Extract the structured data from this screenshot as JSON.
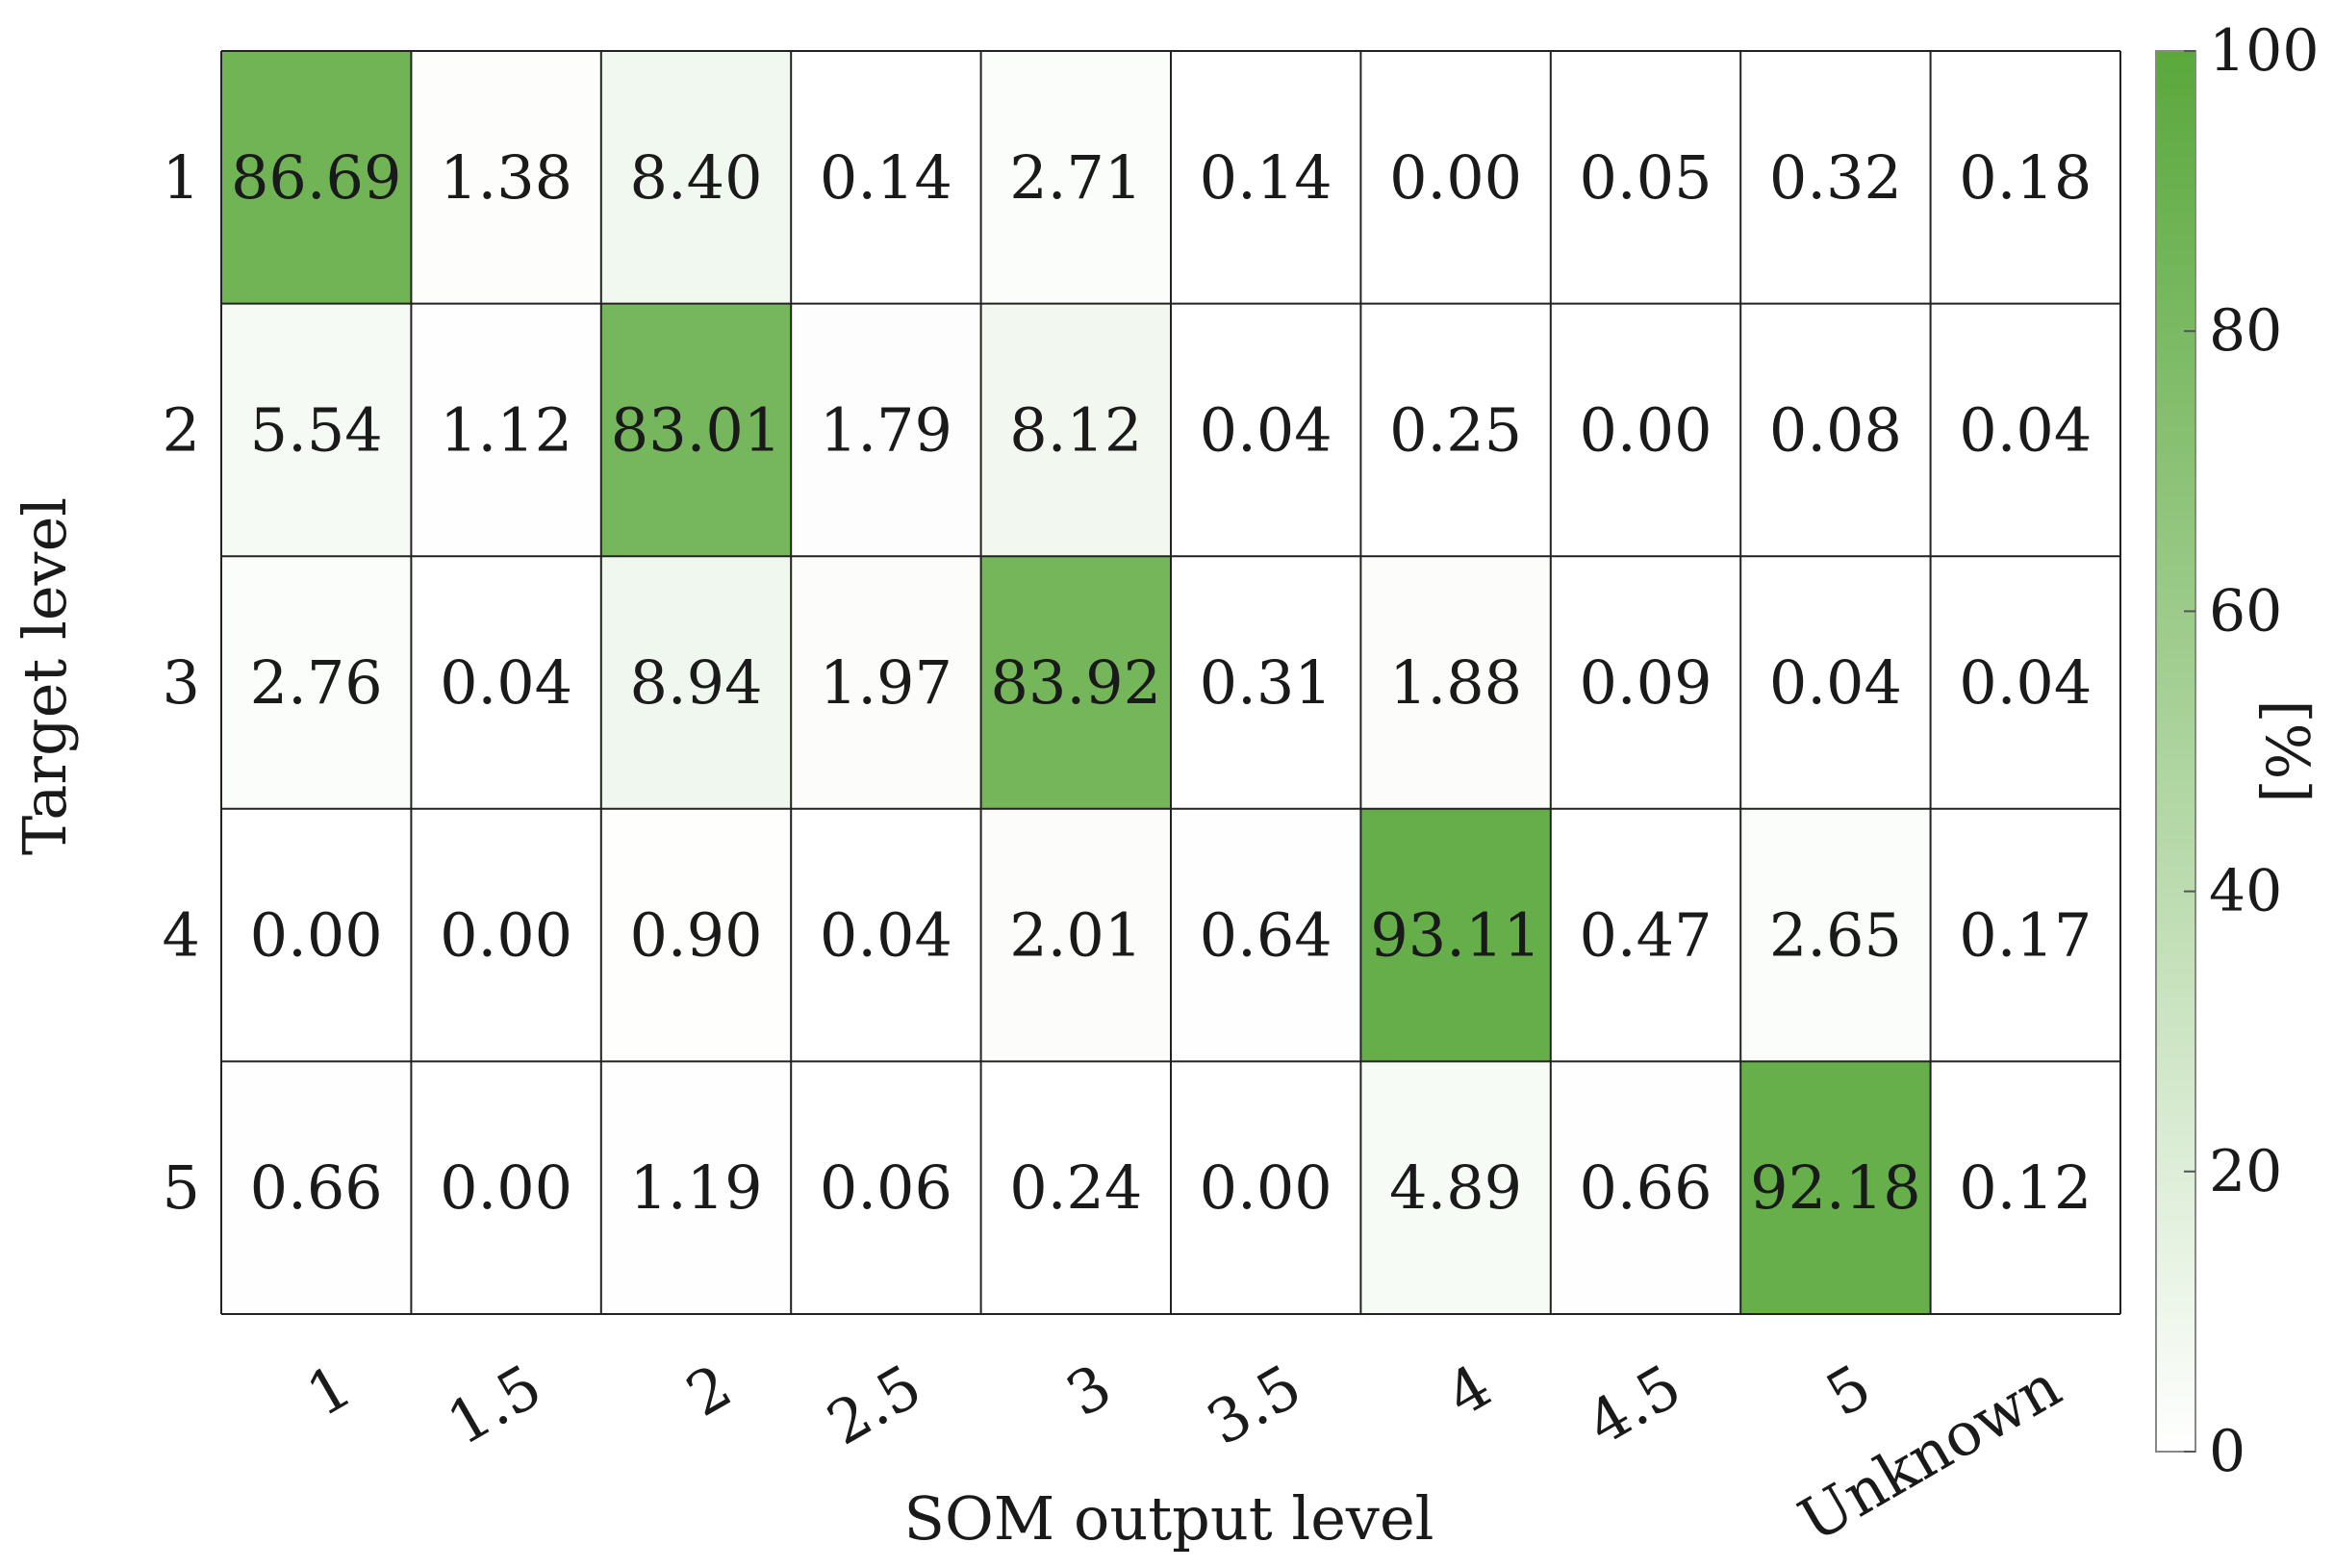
{
  "chart_data": {
    "type": "heatmap",
    "title": "",
    "xlabel": "SOM output level",
    "ylabel": "Target level",
    "x_categories": [
      "1",
      "1.5",
      "2",
      "2.5",
      "3",
      "3.5",
      "4",
      "4.5",
      "5",
      "Unknown"
    ],
    "y_categories": [
      "1",
      "2",
      "3",
      "4",
      "5"
    ],
    "values": [
      [
        86.69,
        1.38,
        8.4,
        0.14,
        2.71,
        0.14,
        0.0,
        0.05,
        0.32,
        0.18
      ],
      [
        5.54,
        1.12,
        83.01,
        1.79,
        8.12,
        0.04,
        0.25,
        0.0,
        0.08,
        0.04
      ],
      [
        2.76,
        0.04,
        8.94,
        1.97,
        83.92,
        0.31,
        1.88,
        0.09,
        0.04,
        0.04
      ],
      [
        0.0,
        0.0,
        0.9,
        0.04,
        2.01,
        0.64,
        93.11,
        0.47,
        2.65,
        0.17
      ],
      [
        0.66,
        0.0,
        1.19,
        0.06,
        0.24,
        0.0,
        4.89,
        0.66,
        92.18,
        0.12
      ]
    ],
    "value_labels": [
      [
        "86.69",
        "1.38",
        "8.40",
        "0.14",
        "2.71",
        "0.14",
        "0.00",
        "0.05",
        "0.32",
        "0.18"
      ],
      [
        "5.54",
        "1.12",
        "83.01",
        "1.79",
        "8.12",
        "0.04",
        "0.25",
        "0.00",
        "0.08",
        "0.04"
      ],
      [
        "2.76",
        "0.04",
        "8.94",
        "1.97",
        "83.92",
        "0.31",
        "1.88",
        "0.09",
        "0.04",
        "0.04"
      ],
      [
        "0.00",
        "0.00",
        "0.90",
        "0.04",
        "2.01",
        "0.64",
        "93.11",
        "0.47",
        "2.65",
        "0.17"
      ],
      [
        "0.66",
        "0.00",
        "1.19",
        "0.06",
        "0.24",
        "0.00",
        "4.89",
        "0.66",
        "92.18",
        "0.12"
      ]
    ],
    "colorbar": {
      "label": "[%]",
      "range": [
        0,
        100
      ],
      "ticks": [
        0,
        20,
        40,
        60,
        80,
        100
      ],
      "color_low": "#ffffff",
      "color_high": "#5aa83c"
    },
    "grid_line_color": "#222222"
  }
}
